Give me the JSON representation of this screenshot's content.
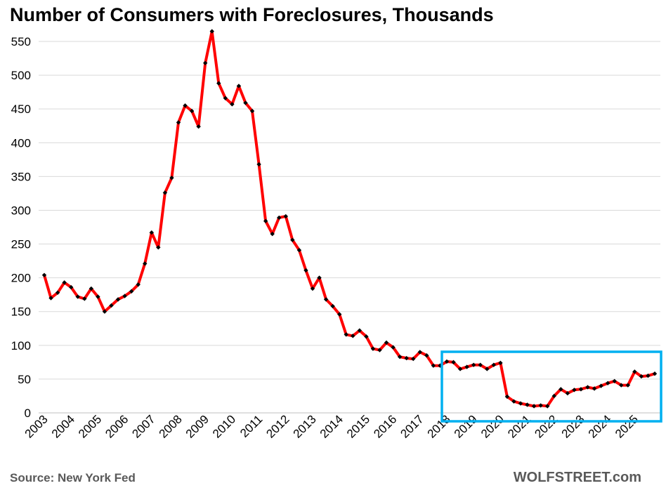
{
  "chart_data": {
    "type": "line",
    "title": "Number  of Consumers with Foreclosures, Thousands",
    "xlabel": "",
    "ylabel": "",
    "ylim": [
      0,
      575
    ],
    "y_ticks": [
      0,
      50,
      100,
      150,
      200,
      250,
      300,
      350,
      400,
      450,
      500,
      550
    ],
    "x_tick_labels": [
      "2003",
      "2004",
      "2005",
      "2006",
      "2007",
      "2008",
      "2009",
      "2010",
      "2011",
      "2012",
      "2013",
      "2014",
      "2015",
      "2016",
      "2017",
      "2018",
      "2019",
      "2020",
      "2021",
      "2022",
      "2023",
      "2024",
      "2025"
    ],
    "grid": true,
    "legend": "none",
    "series": [
      {
        "name": "Consumers with foreclosures (thousands), quarterly",
        "color": "#ff0000",
        "marker_color": "#000000",
        "x_start": "2003 Q1",
        "frequency": "quarterly",
        "values": [
          204,
          170,
          178,
          193,
          186,
          172,
          169,
          184,
          172,
          150,
          159,
          168,
          173,
          180,
          190,
          221,
          267,
          245,
          326,
          348,
          430,
          455,
          447,
          424,
          518,
          565,
          488,
          466,
          457,
          484,
          459,
          447,
          368,
          284,
          265,
          289,
          291,
          256,
          241,
          211,
          184,
          200,
          168,
          158,
          146,
          116,
          114,
          122,
          113,
          95,
          93,
          104,
          97,
          83,
          81,
          80,
          90,
          85,
          70,
          70,
          76,
          75,
          65,
          68,
          71,
          71,
          65,
          71,
          74,
          24,
          17,
          14,
          12,
          10,
          11,
          10,
          25,
          35,
          29,
          34,
          35,
          38,
          36,
          40,
          44,
          47,
          41,
          41,
          61,
          54,
          55,
          58
        ]
      }
    ],
    "annotation": "highlight box around 2018–2025"
  },
  "colors": {
    "line": "#ff0000",
    "marker": "#000000",
    "grid": "#d9d9d9",
    "highlight_box": "#00b0f0",
    "footer_text": "#595959"
  },
  "footer": {
    "source": "Source: New York Fed",
    "brand": "WOLFSTREET.com"
  }
}
